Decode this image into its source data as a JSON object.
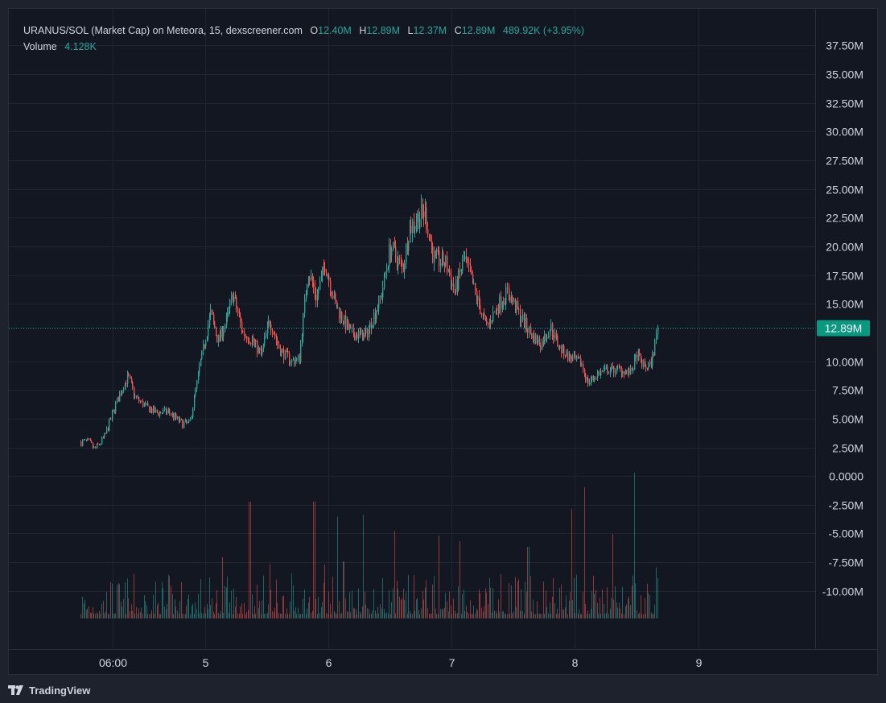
{
  "legend": {
    "title": "URANUS/SOL (Market Cap) on Meteora, 15, dexscreener.com",
    "open_label": "O",
    "open": "12.40M",
    "high_label": "H",
    "high": "12.89M",
    "low_label": "L",
    "low": "12.37M",
    "close_label": "C",
    "close": "12.89M",
    "change": "489.92K (+3.95%)",
    "volume_label": "Volume",
    "volume": "4.128K"
  },
  "price_tag": "12.89M",
  "footer": {
    "brand": "TradingView",
    "logo_icon": "tradingview-logo-icon"
  },
  "colors": {
    "up": "#26a69a",
    "down": "#ef5350",
    "background": "#131722",
    "grid": "#1f2430",
    "text": "#d1d4dc",
    "price_tag": "#089981"
  },
  "chart_data": {
    "type": "candlestick",
    "symbol": "URANUS/SOL (Market Cap)",
    "interval": "15",
    "y_ticks": [
      "37.50M",
      "35.00M",
      "32.50M",
      "30.00M",
      "27.50M",
      "25.00M",
      "22.50M",
      "20.00M",
      "17.50M",
      "15.00M",
      "10.00M",
      "7.50M",
      "5.00M",
      "2.50M",
      "0.0000",
      "-2.50M",
      "-5.00M",
      "-7.50M",
      "-10.00M"
    ],
    "y_tick_values": [
      37.5,
      35,
      32.5,
      30,
      27.5,
      25,
      22.5,
      20,
      17.5,
      15,
      10,
      7.5,
      5,
      2.5,
      0,
      -2.5,
      -5,
      -7.5,
      -10
    ],
    "y_unit": "M",
    "ylim": [
      -12.4,
      39
    ],
    "x_ticks": [
      "06:00",
      "5",
      "6",
      "7",
      "8",
      "9"
    ],
    "x_tick_days": [
      4.25,
      5,
      6,
      7,
      8,
      9
    ],
    "xlim": [
      3.7,
      9.95
    ],
    "last_price": 12.89,
    "close_path": [
      {
        "x": 3.99,
        "y": 3.0
      },
      {
        "x": 4.05,
        "y": 2.9
      },
      {
        "x": 4.1,
        "y": 2.3
      },
      {
        "x": 4.18,
        "y": 3.4
      },
      {
        "x": 4.27,
        "y": 6.2
      },
      {
        "x": 4.33,
        "y": 7.8
      },
      {
        "x": 4.37,
        "y": 8.7
      },
      {
        "x": 4.43,
        "y": 6.8
      },
      {
        "x": 4.52,
        "y": 6.0
      },
      {
        "x": 4.6,
        "y": 5.5
      },
      {
        "x": 4.7,
        "y": 5.6
      },
      {
        "x": 4.8,
        "y": 4.6
      },
      {
        "x": 4.87,
        "y": 4.5
      },
      {
        "x": 4.95,
        "y": 9.5
      },
      {
        "x": 5.04,
        "y": 14.2
      },
      {
        "x": 5.1,
        "y": 11.8
      },
      {
        "x": 5.17,
        "y": 13.5
      },
      {
        "x": 5.22,
        "y": 15.9
      },
      {
        "x": 5.3,
        "y": 12.5
      },
      {
        "x": 5.38,
        "y": 11.8
      },
      {
        "x": 5.45,
        "y": 10.5
      },
      {
        "x": 5.52,
        "y": 13.6
      },
      {
        "x": 5.6,
        "y": 11.0
      },
      {
        "x": 5.7,
        "y": 10.0
      },
      {
        "x": 5.76,
        "y": 10.2
      },
      {
        "x": 5.83,
        "y": 18.0
      },
      {
        "x": 5.9,
        "y": 15.5
      },
      {
        "x": 5.97,
        "y": 18.5
      },
      {
        "x": 6.05,
        "y": 15.0
      },
      {
        "x": 6.12,
        "y": 13.5
      },
      {
        "x": 6.18,
        "y": 12.4
      },
      {
        "x": 6.3,
        "y": 12.2
      },
      {
        "x": 6.42,
        "y": 15.5
      },
      {
        "x": 6.5,
        "y": 20.0
      },
      {
        "x": 6.6,
        "y": 18.0
      },
      {
        "x": 6.65,
        "y": 21.5
      },
      {
        "x": 6.72,
        "y": 22.5
      },
      {
        "x": 6.78,
        "y": 23.0
      },
      {
        "x": 6.85,
        "y": 19.0
      },
      {
        "x": 6.95,
        "y": 18.5
      },
      {
        "x": 7.02,
        "y": 16.0
      },
      {
        "x": 7.1,
        "y": 19.0
      },
      {
        "x": 7.2,
        "y": 15.5
      },
      {
        "x": 7.28,
        "y": 13.0
      },
      {
        "x": 7.38,
        "y": 15.0
      },
      {
        "x": 7.45,
        "y": 16.0
      },
      {
        "x": 7.55,
        "y": 14.0
      },
      {
        "x": 7.65,
        "y": 12.2
      },
      {
        "x": 7.72,
        "y": 11.5
      },
      {
        "x": 7.8,
        "y": 13.0
      },
      {
        "x": 7.87,
        "y": 11.2
      },
      {
        "x": 7.95,
        "y": 10.3
      },
      {
        "x": 8.05,
        "y": 9.8
      },
      {
        "x": 8.1,
        "y": 8.1
      },
      {
        "x": 8.18,
        "y": 8.9
      },
      {
        "x": 8.25,
        "y": 9.2
      },
      {
        "x": 8.35,
        "y": 9.3
      },
      {
        "x": 8.45,
        "y": 9.0
      },
      {
        "x": 8.5,
        "y": 10.5
      },
      {
        "x": 8.56,
        "y": 9.5
      },
      {
        "x": 8.6,
        "y": 9.5
      },
      {
        "x": 8.63,
        "y": 10.5
      },
      {
        "x": 8.66,
        "y": 12.4
      },
      {
        "x": 8.67,
        "y": 12.89
      }
    ],
    "volume_spikes": [
      {
        "x": 5.14,
        "v": 0.42
      },
      {
        "x": 5.36,
        "v": 0.8
      },
      {
        "x": 5.52,
        "v": 0.37
      },
      {
        "x": 5.88,
        "v": 0.8
      },
      {
        "x": 5.97,
        "v": 0.37
      },
      {
        "x": 6.07,
        "v": 0.7
      },
      {
        "x": 6.12,
        "v": 0.39
      },
      {
        "x": 6.28,
        "v": 0.71
      },
      {
        "x": 6.53,
        "v": 0.6
      },
      {
        "x": 6.9,
        "v": 0.57
      },
      {
        "x": 7.06,
        "v": 0.53
      },
      {
        "x": 7.62,
        "v": 0.49
      },
      {
        "x": 7.97,
        "v": 0.75
      },
      {
        "x": 8.07,
        "v": 0.9
      },
      {
        "x": 8.3,
        "v": 0.58
      },
      {
        "x": 8.48,
        "v": 1.0
      },
      {
        "x": 8.66,
        "v": 0.35
      }
    ]
  }
}
